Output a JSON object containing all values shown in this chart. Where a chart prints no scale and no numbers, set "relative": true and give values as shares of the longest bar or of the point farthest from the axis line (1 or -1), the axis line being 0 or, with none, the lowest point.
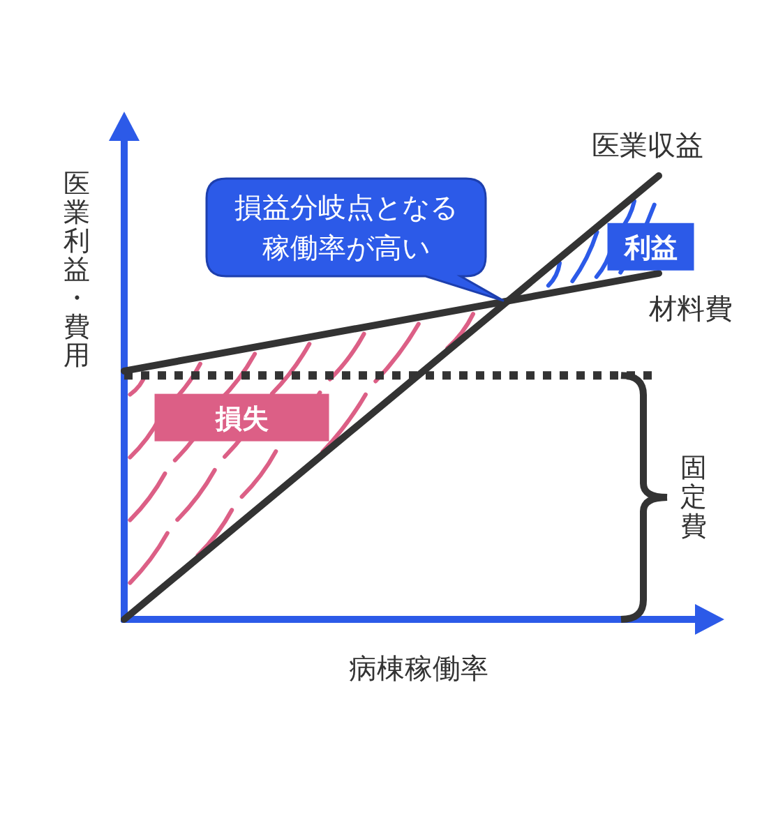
{
  "chart_data": {
    "type": "line",
    "relative": true,
    "xlabel": "病棟稼働率",
    "ylabel": "医業利益・費用",
    "categories": [
      null,
      null
    ],
    "series": [
      {
        "name": "医業収益",
        "color": "#333333",
        "values": [
          0,
          1
        ]
      },
      {
        "name": "材料費",
        "color": "#333333",
        "values": [
          0.56,
          0.78
        ]
      }
    ],
    "ref_lines": [
      {
        "axis": "y",
        "value": 0.55,
        "color": "#333333",
        "line_style": "dotted"
      }
    ],
    "annotations": [
      "損益分岐点となる稼働率が高い",
      "損失",
      "利益",
      "固定費"
    ]
  }
}
